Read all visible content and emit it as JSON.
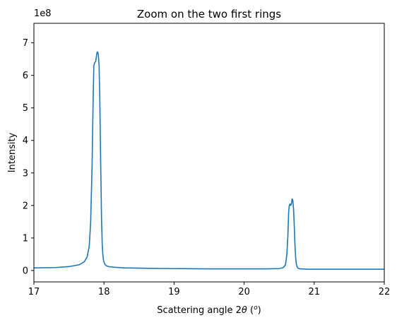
{
  "chart_data": {
    "type": "line",
    "title": "Zoom on the two first rings",
    "xlabel_prefix": "Scattering angle 2",
    "xlabel_theta": "θ",
    "xlabel_suffix_open": " (",
    "xlabel_degree": "o",
    "xlabel_suffix_close": ")",
    "ylabel": "Intensity",
    "y_offset_label": "1e8",
    "xlim": [
      17,
      22
    ],
    "ylim": [
      -0.35,
      7.6
    ],
    "xticks": [
      17,
      18,
      19,
      20,
      21,
      22
    ],
    "xtick_labels": [
      "17",
      "18",
      "19",
      "20",
      "21",
      "22"
    ],
    "yticks": [
      0,
      1,
      2,
      3,
      4,
      5,
      6,
      7
    ],
    "ytick_labels": [
      "0",
      "1",
      "2",
      "3",
      "4",
      "5",
      "6",
      "7"
    ],
    "grid": false,
    "line_color": "#1f77b4",
    "series": [
      {
        "x": [
          17.0,
          17.3,
          17.5,
          17.65,
          17.72,
          17.76,
          17.79,
          17.81,
          17.83,
          17.845,
          17.855,
          17.87,
          17.88,
          17.89,
          17.9,
          17.91,
          17.92,
          17.93,
          17.94,
          17.955,
          17.965,
          17.975,
          17.985,
          17.995,
          18.01,
          18.03,
          18.07,
          18.15,
          18.3,
          18.6,
          19.0,
          19.5,
          20.0,
          20.3,
          20.5,
          20.56,
          20.59,
          20.61,
          20.625,
          20.635,
          20.645,
          20.655,
          20.665,
          20.675,
          20.685,
          20.695,
          20.705,
          20.715,
          20.725,
          20.735,
          20.745,
          20.755,
          20.765,
          20.78,
          20.8,
          20.83,
          20.9,
          21.0,
          21.3,
          21.6,
          22.0
        ],
        "y": [
          0.08,
          0.09,
          0.12,
          0.18,
          0.27,
          0.42,
          0.75,
          1.5,
          3.2,
          5.2,
          6.3,
          6.4,
          6.42,
          6.55,
          6.7,
          6.72,
          6.62,
          6.3,
          5.3,
          3.0,
          1.6,
          0.8,
          0.45,
          0.3,
          0.2,
          0.15,
          0.12,
          0.1,
          0.08,
          0.07,
          0.06,
          0.05,
          0.05,
          0.05,
          0.06,
          0.09,
          0.18,
          0.5,
          1.1,
          1.8,
          2.0,
          2.05,
          2.0,
          2.05,
          2.2,
          2.15,
          1.9,
          1.4,
          0.8,
          0.4,
          0.2,
          0.12,
          0.08,
          0.06,
          0.05,
          0.05,
          0.04,
          0.04,
          0.04,
          0.04,
          0.04
        ]
      }
    ]
  }
}
